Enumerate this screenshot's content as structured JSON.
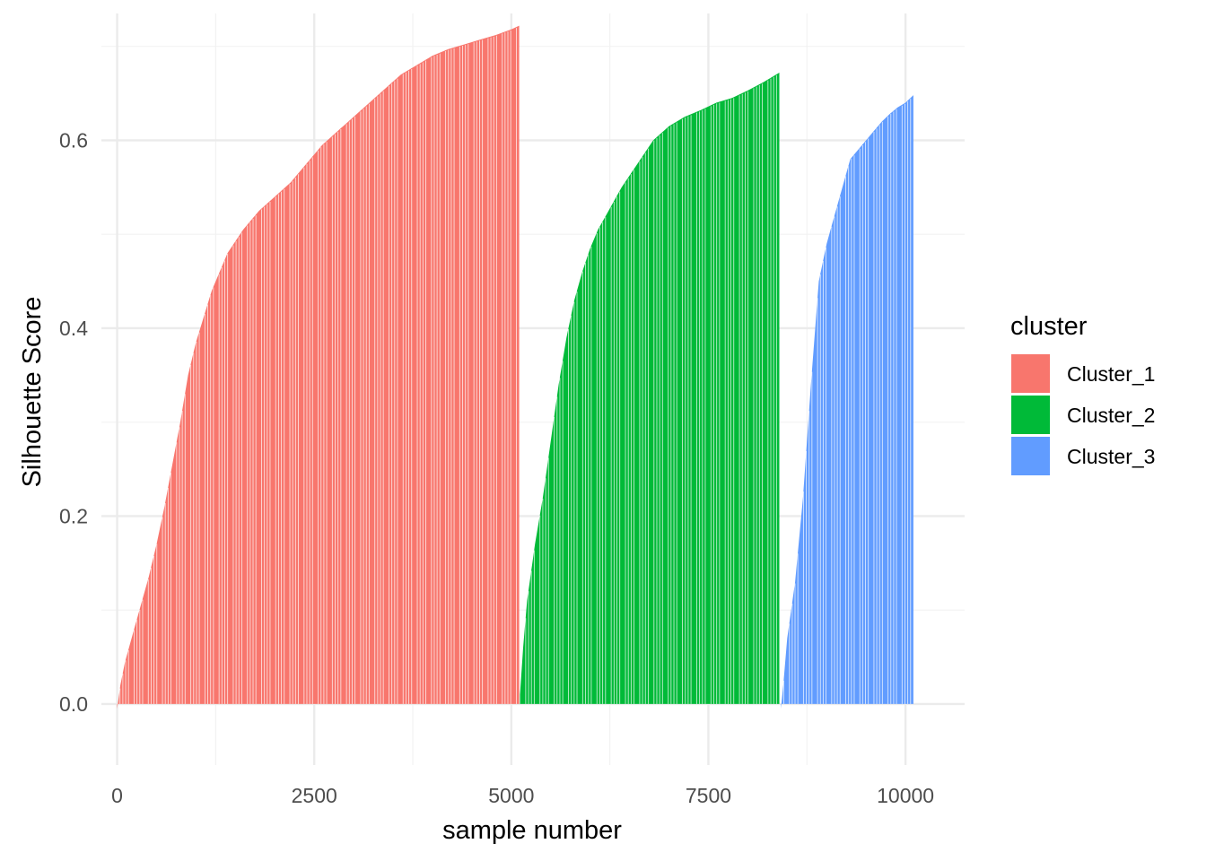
{
  "chart_data": {
    "type": "bar",
    "xlabel": "sample number",
    "ylabel": "Silhouette Score",
    "xlim": [
      -200,
      10750
    ],
    "ylim": [
      -0.065,
      0.735
    ],
    "x_ticks": [
      0,
      2500,
      5000,
      7500,
      10000
    ],
    "x_tick_labels": [
      "0",
      "2500",
      "5000",
      "7500",
      "10000"
    ],
    "y_ticks": [
      0.0,
      0.2,
      0.4,
      0.6
    ],
    "y_tick_labels": [
      "0.0",
      "0.2",
      "0.4",
      "0.6"
    ],
    "grid": true,
    "legend": {
      "title": "cluster",
      "position": "right"
    },
    "series": [
      {
        "name": "Cluster_1",
        "color": "#F8766D",
        "x": [
          0,
          40,
          100,
          200,
          300,
          400,
          500,
          600,
          700,
          800,
          900,
          1000,
          1200,
          1400,
          1600,
          1800,
          2000,
          2200,
          2400,
          2600,
          2800,
          3000,
          3200,
          3400,
          3600,
          3800,
          4000,
          4200,
          4400,
          4600,
          4800,
          5000,
          5100
        ],
        "values": [
          -0.005,
          0.02,
          0.045,
          0.075,
          0.105,
          0.135,
          0.17,
          0.21,
          0.255,
          0.3,
          0.35,
          0.385,
          0.44,
          0.48,
          0.505,
          0.525,
          0.54,
          0.555,
          0.575,
          0.595,
          0.61,
          0.625,
          0.64,
          0.655,
          0.67,
          0.68,
          0.69,
          0.697,
          0.702,
          0.707,
          0.712,
          0.718,
          0.722
        ]
      },
      {
        "name": "Cluster_2",
        "color": "#00BA38",
        "x": [
          5110,
          5150,
          5200,
          5300,
          5400,
          5500,
          5600,
          5700,
          5800,
          5900,
          6000,
          6100,
          6200,
          6400,
          6600,
          6800,
          7000,
          7200,
          7400,
          7600,
          7800,
          8000,
          8200,
          8400
        ],
        "values": [
          0.01,
          0.06,
          0.11,
          0.17,
          0.22,
          0.28,
          0.34,
          0.39,
          0.43,
          0.46,
          0.485,
          0.505,
          0.52,
          0.55,
          0.575,
          0.6,
          0.615,
          0.625,
          0.632,
          0.64,
          0.645,
          0.653,
          0.662,
          0.672
        ]
      },
      {
        "name": "Cluster_3",
        "color": "#619CFF",
        "x": [
          8420,
          8450,
          8500,
          8600,
          8700,
          8800,
          8900,
          9000,
          9100,
          9200,
          9300,
          9400,
          9500,
          9600,
          9700,
          9800,
          9900,
          10000,
          10100
        ],
        "values": [
          -0.005,
          0.02,
          0.07,
          0.13,
          0.22,
          0.34,
          0.45,
          0.49,
          0.52,
          0.55,
          0.58,
          0.59,
          0.6,
          0.61,
          0.62,
          0.628,
          0.635,
          0.64,
          0.648
        ]
      }
    ]
  }
}
